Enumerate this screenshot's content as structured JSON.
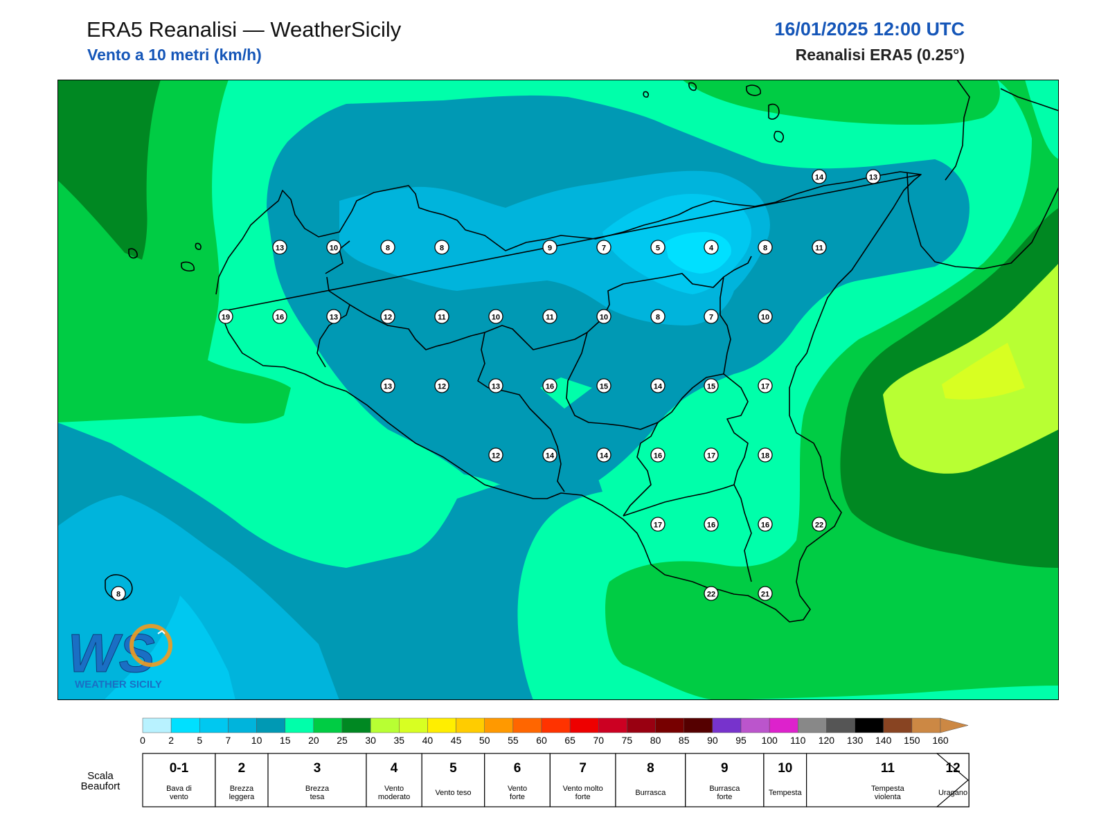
{
  "header": {
    "title": "ERA5 Reanalisi — WeatherSicily",
    "subtitle": "Vento a 10 metri (km/h)",
    "datetime": "16/01/2025 12:00 UTC",
    "source": "Reanalisi ERA5 (0.25°)"
  },
  "logo": {
    "letters": "WS",
    "text": "WEATHER SICILY"
  },
  "colorbar": {
    "ticks": [
      "0",
      "2",
      "5",
      "7",
      "10",
      "15",
      "20",
      "25",
      "30",
      "35",
      "40",
      "45",
      "50",
      "55",
      "60",
      "65",
      "70",
      "75",
      "80",
      "85",
      "90",
      "95",
      "100",
      "110",
      "120",
      "130",
      "140",
      "150",
      "160"
    ],
    "colors": [
      "#b8f2ff",
      "#00e0ff",
      "#00c8f0",
      "#00b4dc",
      "#0099b4",
      "#00ffaa",
      "#00cc44",
      "#008822",
      "#b8ff33",
      "#d8ff22",
      "#ffee00",
      "#ffcc00",
      "#ff9900",
      "#ff6600",
      "#ff3300",
      "#ee0000",
      "#cc0022",
      "#990011",
      "#770000",
      "#550000",
      "#7733cc",
      "#bb55cc",
      "#dd22cc",
      "#888888",
      "#555555",
      "#000000",
      "#884422",
      "#cc8844"
    ]
  },
  "beaufort": {
    "title_line1": "Scala",
    "title_line2": "Beaufort",
    "classes": [
      {
        "num": "0-1",
        "l1": "Bava di",
        "l2": "vento"
      },
      {
        "num": "2",
        "l1": "Brezza",
        "l2": "leggera"
      },
      {
        "num": "3",
        "l1": "Brezza",
        "l2": "tesa"
      },
      {
        "num": "4",
        "l1": "Vento",
        "l2": "moderato"
      },
      {
        "num": "5",
        "l1": "Vento teso",
        "l2": ""
      },
      {
        "num": "6",
        "l1": "Vento",
        "l2": "forte"
      },
      {
        "num": "7",
        "l1": "Vento molto",
        "l2": "forte"
      },
      {
        "num": "8",
        "l1": "Burrasca",
        "l2": ""
      },
      {
        "num": "9",
        "l1": "Burrasca",
        "l2": "forte"
      },
      {
        "num": "10",
        "l1": "Tempesta",
        "l2": ""
      },
      {
        "num": "11",
        "l1": "Tempesta",
        "l2": "violenta"
      },
      {
        "num": "12",
        "l1": "Uragano",
        "l2": ""
      }
    ]
  },
  "points": [
    "13",
    "10",
    "8",
    "8",
    "9",
    "7",
    "5",
    "4",
    "8",
    "11",
    "19",
    "16",
    "13",
    "12",
    "11",
    "10",
    "11",
    "10",
    "8",
    "7",
    "10",
    "13",
    "12",
    "13",
    "16",
    "15",
    "14",
    "15",
    "17",
    "12",
    "14",
    "14",
    "16",
    "17",
    "18",
    "17",
    "16",
    "16",
    "22",
    "22",
    "21",
    "14",
    "13",
    "8"
  ]
}
